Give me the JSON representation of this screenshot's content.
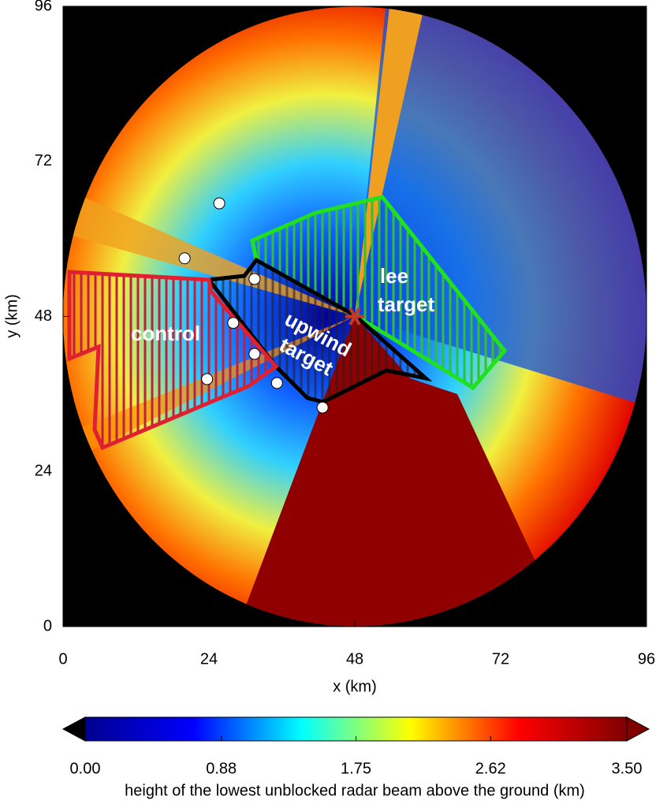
{
  "chart_data": {
    "type": "scatter",
    "xlabel": "x (km)",
    "ylabel": "y (km)",
    "xlim": [
      0,
      96
    ],
    "ylim": [
      0,
      96
    ],
    "xticks": [
      0,
      24,
      48,
      72,
      96
    ],
    "yticks": [
      0,
      24,
      48,
      72,
      96
    ],
    "x": [
      25.7,
      20.0,
      31.5,
      28.0,
      31.5,
      23.7,
      35.2,
      42.7
    ],
    "y": [
      65.5,
      57.0,
      53.8,
      47.0,
      42.2,
      38.3,
      37.7,
      33.9
    ],
    "color": "#ffffff",
    "radar": {
      "x": 48,
      "y": 48,
      "color": "#c0392b"
    },
    "annotations": {
      "control": "control",
      "upwind": [
        "upwind",
        "target"
      ],
      "lee": [
        "lee",
        "target"
      ]
    },
    "colorbar": {
      "label": "height of the lowest unblocked radar beam above the ground (km)",
      "clim": [
        0,
        3.5
      ],
      "ticks": [
        {
          "value": 0,
          "label": "0.00"
        },
        0.88,
        1.75,
        2.62,
        {
          "value": 3.5,
          "label": "3.50"
        }
      ],
      "colormap": [
        "#00008f",
        "#0000ff",
        "#00ffff",
        "#ffff00",
        "#ff0000",
        "#800000"
      ]
    }
  }
}
